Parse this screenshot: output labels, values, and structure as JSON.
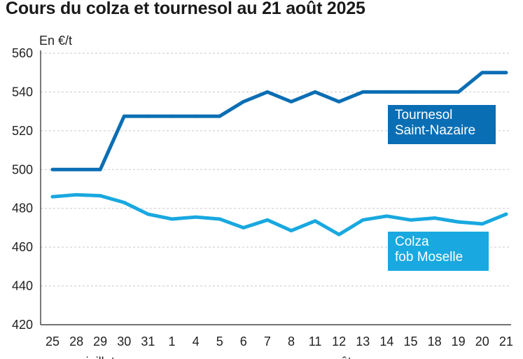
{
  "title": "Cours du colza et tournesol au 21 août 2025",
  "chart_data": {
    "type": "line",
    "title": "Cours du colza et tournesol au 21 août 2025",
    "ylabel": "En €/t",
    "xlabel": "",
    "ylim": [
      420,
      560
    ],
    "yticks": [
      "420",
      "440",
      "460",
      "480",
      "500",
      "520",
      "540",
      "560"
    ],
    "categories": [
      "25",
      "28",
      "29",
      "30",
      "31",
      "1",
      "4",
      "5",
      "6",
      "7",
      "8",
      "11",
      "12",
      "13",
      "14",
      "15",
      "18",
      "19",
      "20",
      "21"
    ],
    "month_labels": [
      {
        "label": "juillet",
        "index": 2
      },
      {
        "label": "août",
        "index": 12
      }
    ],
    "grid": "horizontal dashed",
    "series": [
      {
        "name": "Tournesol Saint-Nazaire",
        "label_lines": [
          "Tournesol",
          "Saint-Nazaire"
        ],
        "color": "#0a6eb4",
        "values": [
          500,
          500,
          500,
          527.5,
          527.5,
          527.5,
          527.5,
          527.5,
          535,
          540,
          535,
          540,
          535,
          540,
          540,
          540,
          540,
          540,
          550,
          550
        ]
      },
      {
        "name": "Colza fob Moselle",
        "label_lines": [
          "Colza",
          "fob Moselle"
        ],
        "color": "#19a8e0",
        "values": [
          486,
          487,
          486.5,
          483,
          477,
          474.5,
          475.5,
          474.5,
          470,
          474,
          468.5,
          473.5,
          466.5,
          474,
          476,
          474,
          475,
          473,
          472,
          477
        ]
      }
    ]
  }
}
